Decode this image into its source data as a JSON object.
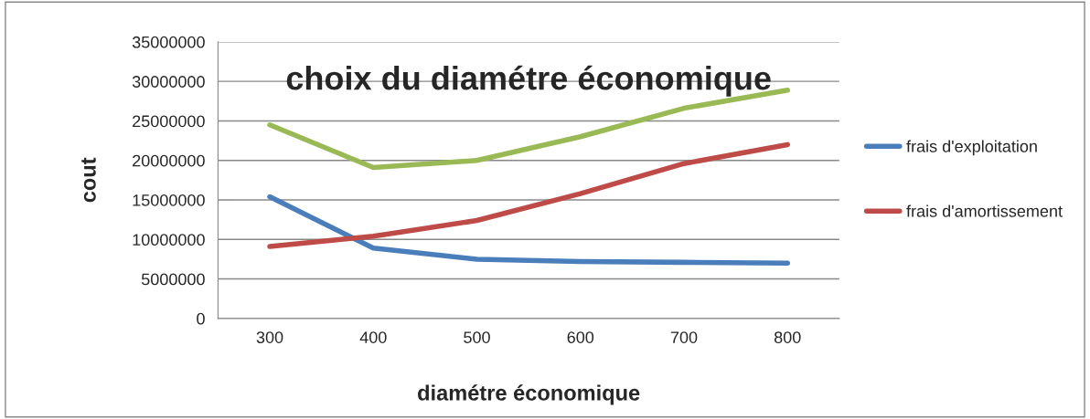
{
  "chart_data": {
    "type": "line",
    "title": "choix du diamétre économique",
    "xlabel": "diamétre économique",
    "ylabel": "cout",
    "categories": [
      "300",
      "400",
      "500",
      "600",
      "700",
      "800"
    ],
    "series": [
      {
        "name": "frais d'exploitation",
        "color": "#4a7ebb",
        "values": [
          15400000,
          8900000,
          7500000,
          7200000,
          7100000,
          7000000
        ]
      },
      {
        "name": "frais d'amortissement",
        "color": "#be4b48",
        "values": [
          9100000,
          10400000,
          12400000,
          15800000,
          19600000,
          22000000
        ]
      },
      {
        "color": "#98b954",
        "values": [
          24500000,
          19100000,
          20000000,
          23000000,
          26600000,
          28900000
        ]
      }
    ],
    "ylim": [
      0,
      35000000
    ],
    "yticks": [
      0,
      5000000,
      10000000,
      15000000,
      20000000,
      25000000,
      30000000,
      35000000
    ],
    "grid": "y",
    "legend": "right",
    "marker": "none",
    "line_style": "solid"
  }
}
